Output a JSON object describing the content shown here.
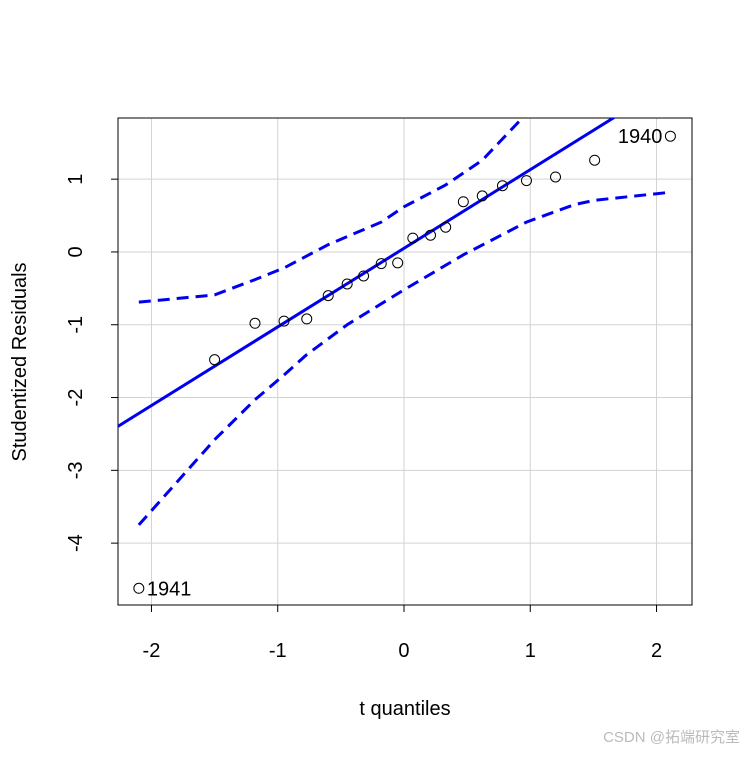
{
  "chart_data": {
    "type": "qqplot",
    "xlabel": "t quantiles",
    "ylabel": "Studentized Residuals",
    "xlim": [
      -2.265,
      2.281
    ],
    "ylim": [
      -4.85,
      1.84
    ],
    "xticks": [
      -2,
      -1,
      0,
      1,
      2
    ],
    "yticks": [
      -4,
      -3,
      -2,
      -1,
      0,
      1
    ],
    "grid": true,
    "points": {
      "color": "#000000",
      "x": [
        -2.1,
        -1.5,
        -1.18,
        -0.95,
        -0.77,
        -0.6,
        -0.45,
        -0.32,
        -0.18,
        -0.05,
        0.07,
        0.21,
        0.33,
        0.47,
        0.62,
        0.78,
        0.97,
        1.2,
        1.51,
        2.11
      ],
      "y": [
        -4.62,
        -1.48,
        -0.98,
        -0.95,
        -0.92,
        -0.6,
        -0.44,
        -0.33,
        -0.16,
        -0.15,
        0.19,
        0.23,
        0.34,
        0.69,
        0.77,
        0.91,
        0.98,
        1.03,
        1.26,
        1.59
      ]
    },
    "point_labels": [
      {
        "index": 0,
        "label": "1941"
      },
      {
        "index": 19,
        "label": "1940"
      }
    ],
    "reference_line": {
      "color": "#0000ee",
      "intercept": 0.05,
      "slope": 1.08
    },
    "bands": [
      {
        "color": "#0000ee",
        "x": [
          -2.1,
          -1.5,
          -1.18,
          -0.95,
          -0.6,
          -0.18,
          0,
          0.33,
          0.62,
          0.97
        ],
        "y": [
          -0.69,
          -0.59,
          -0.38,
          -0.22,
          0.1,
          0.41,
          0.62,
          0.92,
          1.26,
          1.9
        ]
      },
      {
        "color": "#0000ee",
        "x": [
          -2.1,
          -1.5,
          -1.18,
          -0.95,
          -0.77,
          -0.45,
          0,
          0.47,
          0.97,
          1.35,
          1.51,
          2.11
        ],
        "y": [
          -3.75,
          -2.58,
          -2.03,
          -1.69,
          -1.41,
          -1.0,
          -0.52,
          -0.04,
          0.41,
          0.65,
          0.71,
          0.82
        ]
      }
    ]
  },
  "watermark": "CSDN @拓端研究室"
}
